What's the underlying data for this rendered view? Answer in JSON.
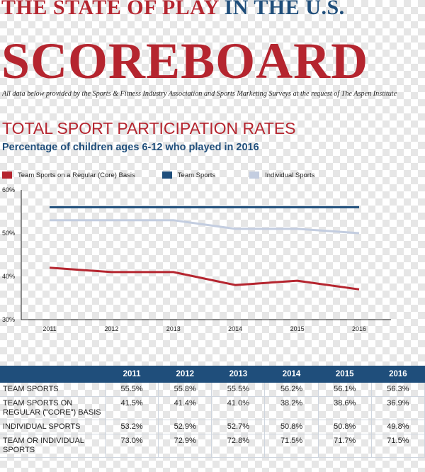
{
  "header": {
    "headline_part1": "THE STATE OF PLAY",
    "headline_part2": "IN THE U.S.",
    "scoreboard": "SCOREBOARD",
    "credit": "All data below provided by the Sports & Fitness Industry Association and Sports Marketing Surveys at the request of The Aspen Institute"
  },
  "section": {
    "title": "TOTAL SPORT PARTICIPATION RATES",
    "subtitle": "Percentage of children ages 6-12 who played in 2016"
  },
  "colors": {
    "red": "#b5252f",
    "blue": "#1f4e7b",
    "light_blue": "#c3cde0"
  },
  "chart_data": {
    "type": "line",
    "title": "",
    "xlabel": "",
    "ylabel": "",
    "x": [
      "2011",
      "2012",
      "2013",
      "2014",
      "2015",
      "2016"
    ],
    "ylim": [
      30,
      60
    ],
    "yticks": [
      "30%",
      "40%",
      "50%",
      "60%"
    ],
    "grid": false,
    "legend_placement": "top",
    "series": [
      {
        "name": "Team Sports on a Regular (Core) Basis",
        "color": "#b5252f",
        "values": [
          42.0,
          41.0,
          41.0,
          38.0,
          39.0,
          37.0
        ]
      },
      {
        "name": "Team Sports",
        "color": "#1f4e7b",
        "values": [
          56.0,
          56.0,
          56.0,
          56.0,
          56.0,
          56.0
        ]
      },
      {
        "name": "Individual Sports",
        "color": "#c3cde0",
        "values": [
          53.0,
          53.0,
          53.0,
          51.0,
          51.0,
          50.0
        ]
      }
    ]
  },
  "table": {
    "years": [
      "2011",
      "2012",
      "2013",
      "2014",
      "2015",
      "2016"
    ],
    "rows": [
      {
        "label": "Team Sports",
        "values": [
          "55.5%",
          "55.8%",
          "55.5%",
          "56.2%",
          "56.1%",
          "56.3%"
        ]
      },
      {
        "label": "Team Sports on Regular (\"Core\") Basis",
        "values": [
          "41.5%",
          "41.4%",
          "41.0%",
          "38.2%",
          "38.6%",
          "36.9%"
        ]
      },
      {
        "label": "Individual Sports",
        "values": [
          "53.2%",
          "52.9%",
          "52.7%",
          "50.8%",
          "50.8%",
          "49.8%"
        ]
      },
      {
        "label": "Team or Individual Sports",
        "values": [
          "73.0%",
          "72.9%",
          "72.8%",
          "71.5%",
          "71.7%",
          "71.5%"
        ]
      }
    ]
  }
}
